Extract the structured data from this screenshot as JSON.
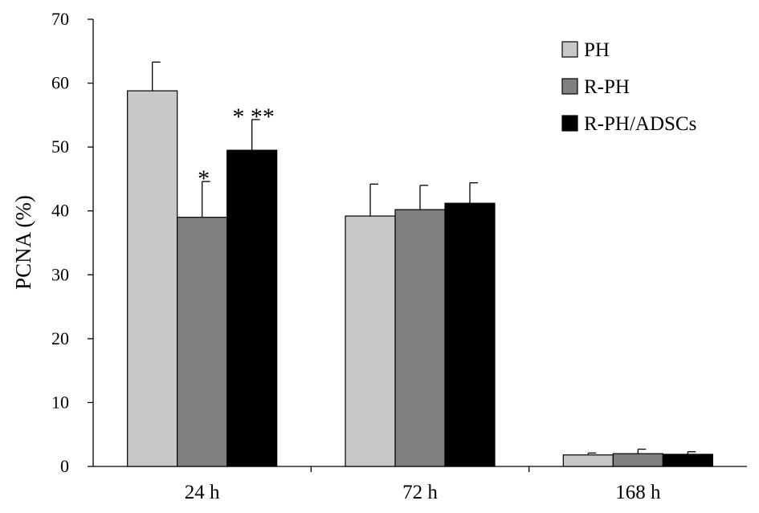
{
  "chart_data": {
    "type": "bar",
    "title": "",
    "xlabel": "",
    "ylabel": "PCNA (%)",
    "ylim": [
      0,
      70
    ],
    "yticks": [
      0,
      10,
      20,
      30,
      40,
      50,
      60,
      70
    ],
    "grid": false,
    "legend_position": "top-right",
    "categories": [
      "24 h",
      "72 h",
      "168 h"
    ],
    "series": [
      {
        "name": "PH",
        "color": "#c8c8c8",
        "values": [
          58.8,
          39.2,
          1.8
        ],
        "errors": [
          4.5,
          5.0,
          0.3
        ]
      },
      {
        "name": "R-PH",
        "color": "#808080",
        "values": [
          39.0,
          40.2,
          2.0
        ],
        "errors": [
          5.6,
          3.8,
          0.7
        ]
      },
      {
        "name": "R-PH/ADSCs",
        "color": "#000000",
        "values": [
          49.5,
          41.2,
          1.9
        ],
        "errors": [
          4.8,
          3.2,
          0.4
        ]
      }
    ],
    "annotations": [
      {
        "category": "24 h",
        "series": "R-PH",
        "text": "*"
      },
      {
        "category": "24 h",
        "series": "R-PH/ADSCs",
        "text": "* **"
      }
    ]
  }
}
